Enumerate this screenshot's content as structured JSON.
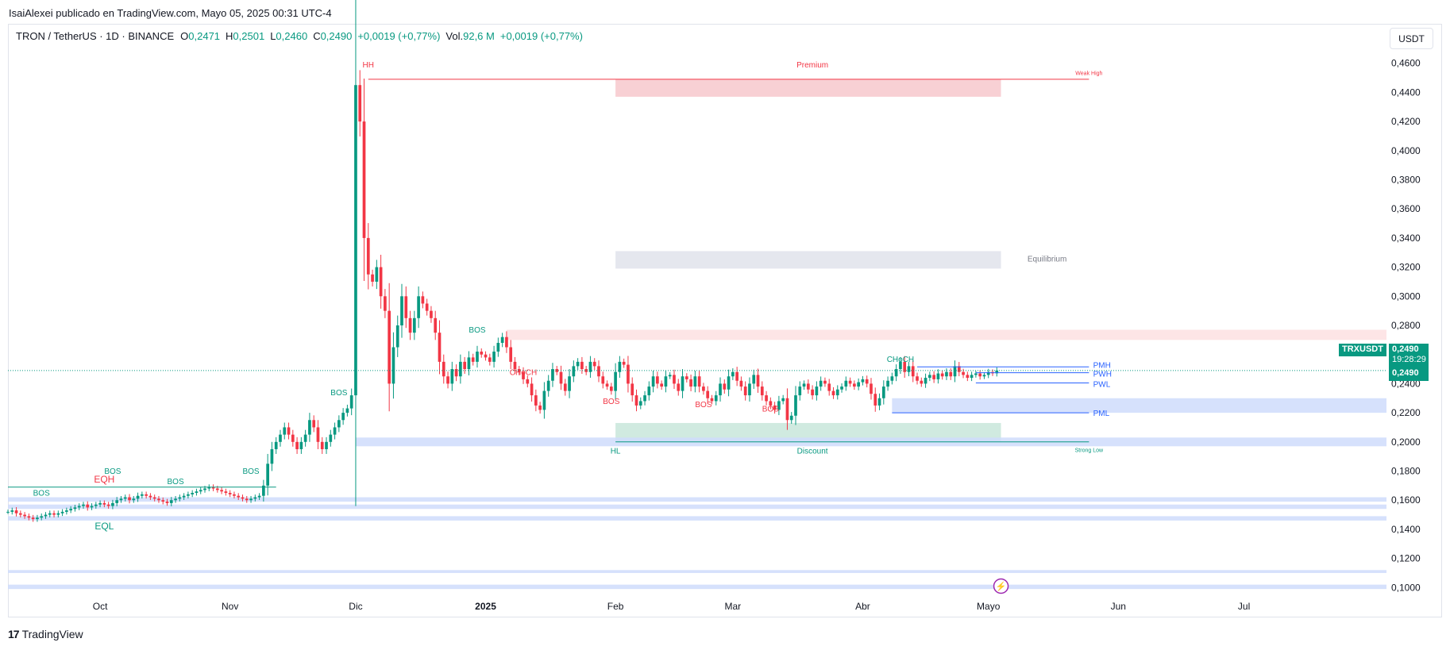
{
  "header": {
    "published_line": "IsaiAlexei publicado en TradingView.com, Mayo 05, 2025 00:31 UTC-4"
  },
  "legend": {
    "symbol": "TRON / TetherUS · 1D · BINANCE",
    "open_key": "O",
    "open": "0,2471",
    "high_key": "H",
    "high": "0,2501",
    "low_key": "L",
    "low": "0,2460",
    "close_key": "C",
    "close": "0,2490",
    "change": "+0,0019 (+0,77%)",
    "vol_key": "Vol.",
    "vol": "92,6 M",
    "vol_change": "+0,0019 (+0,77%)"
  },
  "currency_button": "USDT",
  "price_tags": {
    "symbol": "TRXUSDT",
    "last": "0,2490",
    "countdown": "19:28:29",
    "last2": "0,2490"
  },
  "footer": {
    "logo_text": "TradingView"
  },
  "colors": {
    "up": "#089981",
    "down": "#f23645",
    "blue": "#2962ff",
    "premium_zone": "#f7c8cc",
    "equilibrium_zone": "#e0e3eb",
    "discount_zone": "#c8e6da",
    "blue_zone": "#cfdcfb",
    "grid_text": "#131722"
  },
  "chart_data": {
    "type": "candlestick",
    "title": "",
    "y_axis": {
      "range": [
        0.092,
        0.468
      ],
      "ticks": [
        "0,4600",
        "0,4400",
        "0,4200",
        "0,4000",
        "0,3800",
        "0,3600",
        "0,3400",
        "0,3200",
        "0,3000",
        "0,2800",
        "0,2600",
        "0,2400",
        "0,2200",
        "0,2000",
        "0,1800",
        "0,1600",
        "0,1400",
        "0,1200",
        "0,1000"
      ],
      "tick_values": [
        0.46,
        0.44,
        0.42,
        0.4,
        0.38,
        0.36,
        0.34,
        0.32,
        0.3,
        0.28,
        0.26,
        0.24,
        0.22,
        0.2,
        0.18,
        0.16,
        0.14,
        0.12,
        0.1
      ]
    },
    "x_axis": {
      "range": [
        "2024-09-09",
        "2025-08-04"
      ],
      "labels": [
        {
          "text": "Oct",
          "date": "2024-10-01"
        },
        {
          "text": "Nov",
          "date": "2024-11-01"
        },
        {
          "text": "Dic",
          "date": "2024-12-01"
        },
        {
          "text": "2025",
          "date": "2025-01-01",
          "bold": true
        },
        {
          "text": "Feb",
          "date": "2025-02-01"
        },
        {
          "text": "Mar",
          "date": "2025-03-01"
        },
        {
          "text": "Abr",
          "date": "2025-04-01"
        },
        {
          "text": "Mayo",
          "date": "2025-05-01"
        },
        {
          "text": "Jun",
          "date": "2025-06-01"
        },
        {
          "text": "Jul",
          "date": "2025-07-01"
        }
      ]
    },
    "series": [
      {
        "name": "TRXUSDT",
        "start_date": "2024-09-09",
        "closes": [
          0.152,
          0.153,
          0.151,
          0.15,
          0.149,
          0.148,
          0.147,
          0.148,
          0.149,
          0.15,
          0.151,
          0.15,
          0.151,
          0.152,
          0.153,
          0.154,
          0.155,
          0.156,
          0.157,
          0.155,
          0.156,
          0.157,
          0.158,
          0.157,
          0.156,
          0.158,
          0.16,
          0.161,
          0.162,
          0.16,
          0.161,
          0.163,
          0.164,
          0.163,
          0.162,
          0.161,
          0.16,
          0.159,
          0.158,
          0.16,
          0.161,
          0.162,
          0.163,
          0.164,
          0.165,
          0.166,
          0.167,
          0.168,
          0.169,
          0.168,
          0.167,
          0.166,
          0.165,
          0.164,
          0.163,
          0.162,
          0.161,
          0.16,
          0.161,
          0.162,
          0.163,
          0.17,
          0.185,
          0.195,
          0.2,
          0.205,
          0.21,
          0.205,
          0.2,
          0.195,
          0.2,
          0.205,
          0.215,
          0.21,
          0.2,
          0.195,
          0.2,
          0.205,
          0.21,
          0.215,
          0.22,
          0.223,
          0.232,
          0.445,
          0.42,
          0.34,
          0.315,
          0.31,
          0.32,
          0.3,
          0.29,
          0.24,
          0.265,
          0.28,
          0.3,
          0.285,
          0.275,
          0.285,
          0.3,
          0.295,
          0.29,
          0.285,
          0.275,
          0.255,
          0.245,
          0.24,
          0.25,
          0.245,
          0.255,
          0.25,
          0.258,
          0.255,
          0.262,
          0.26,
          0.258,
          0.255,
          0.262,
          0.268,
          0.272,
          0.265,
          0.255,
          0.25,
          0.248,
          0.243,
          0.24,
          0.232,
          0.225,
          0.222,
          0.235,
          0.242,
          0.25,
          0.248,
          0.24,
          0.235,
          0.245,
          0.252,
          0.255,
          0.25,
          0.248,
          0.255,
          0.252,
          0.245,
          0.24,
          0.238,
          0.235,
          0.248,
          0.255,
          0.253,
          0.24,
          0.232,
          0.225,
          0.228,
          0.232,
          0.238,
          0.245,
          0.24,
          0.238,
          0.245,
          0.246,
          0.24,
          0.235,
          0.245,
          0.243,
          0.238,
          0.245,
          0.238,
          0.235,
          0.23,
          0.228,
          0.232,
          0.24,
          0.236,
          0.245,
          0.248,
          0.242,
          0.238,
          0.232,
          0.24,
          0.246,
          0.238,
          0.232,
          0.228,
          0.225,
          0.222,
          0.228,
          0.23,
          0.215,
          0.218,
          0.232,
          0.238,
          0.24,
          0.236,
          0.232,
          0.238,
          0.242,
          0.24,
          0.235,
          0.232,
          0.236,
          0.238,
          0.242,
          0.24,
          0.238,
          0.241,
          0.243,
          0.24,
          0.233,
          0.225,
          0.23,
          0.238,
          0.242,
          0.245,
          0.25,
          0.255,
          0.248,
          0.252,
          0.245,
          0.242,
          0.24,
          0.244,
          0.246,
          0.243,
          0.247,
          0.245,
          0.248,
          0.245,
          0.252,
          0.248,
          0.246,
          0.244,
          0.246,
          0.247,
          0.245,
          0.246,
          0.248,
          0.2471,
          0.249
        ]
      }
    ],
    "annotations": {
      "hh": "HH",
      "premium": "Premium",
      "weak_high": "Weak High",
      "equilibrium": "Equilibrium",
      "discount": "Discount",
      "strong_low": "Strong Low",
      "hl": "HL",
      "eqh": "EQH",
      "eql": "EQL",
      "bos": "BOS",
      "choch": "CHoCH",
      "pmh": "PMH",
      "pwh": "PWH",
      "pwl": "PWL",
      "pml": "PML"
    },
    "zones": {
      "premium": {
        "from": "2025-02-01",
        "to": "2025-05-04",
        "low": 0.437,
        "high": 0.449
      },
      "equilibrium": {
        "from": "2025-02-01",
        "to": "2025-05-04",
        "low": 0.319,
        "high": 0.331
      },
      "discount": {
        "from": "2025-02-01",
        "to": "2025-05-04",
        "low": 0.2,
        "high": 0.213
      },
      "upper_red": {
        "from": "2025-01-06",
        "to": "2025-08-04",
        "low": 0.27,
        "high": 0.277
      },
      "blue_mid": {
        "from": "2025-04-08",
        "to": "2025-08-04",
        "low": 0.22,
        "high": 0.23
      },
      "blue_low": {
        "from": "2024-12-01",
        "to": "2025-08-04",
        "low": 0.197,
        "high": 0.203
      },
      "blue_160": {
        "from": "2024-09-09",
        "to": "2025-08-04",
        "low": 0.159,
        "high": 0.162
      },
      "blue_155": {
        "from": "2024-09-09",
        "to": "2025-08-04",
        "low": 0.154,
        "high": 0.157
      },
      "blue_146": {
        "from": "2024-09-09",
        "to": "2025-08-04",
        "low": 0.146,
        "high": 0.149
      },
      "blue_110": {
        "from": "2024-09-09",
        "to": "2025-08-04",
        "low": 0.11,
        "high": 0.112
      },
      "blue_100": {
        "from": "2024-09-09",
        "to": "2025-08-04",
        "low": 0.099,
        "high": 0.102
      }
    },
    "lines": {
      "weak_high": 0.449,
      "strong_low": 0.2,
      "pmh": 0.2515,
      "pwh": 0.2475,
      "pwl": 0.2405,
      "pml": 0.22,
      "last_price": 0.249
    },
    "grid": false,
    "legend_position": "top-left"
  }
}
